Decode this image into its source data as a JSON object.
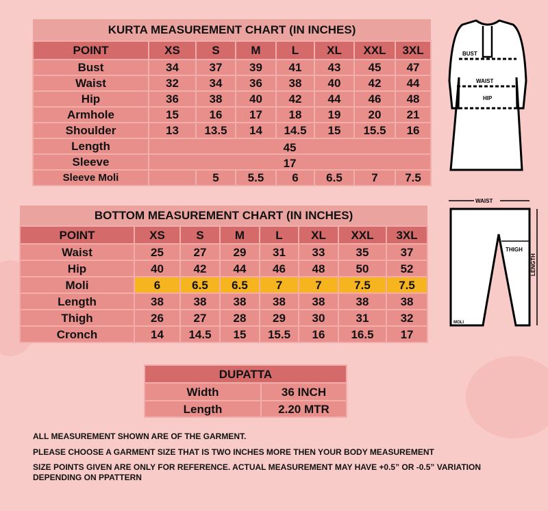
{
  "kurta": {
    "title": "KURTA MEASUREMENT CHART (IN INCHES)",
    "headers": [
      "POINT",
      "XS",
      "S",
      "M",
      "L",
      "XL",
      "XXL",
      "3XL"
    ],
    "rows": [
      {
        "point": "Bust",
        "values": [
          "34",
          "37",
          "39",
          "41",
          "43",
          "45",
          "47"
        ]
      },
      {
        "point": "Waist",
        "values": [
          "32",
          "34",
          "36",
          "38",
          "40",
          "42",
          "44"
        ]
      },
      {
        "point": "Hip",
        "values": [
          "36",
          "38",
          "40",
          "42",
          "44",
          "46",
          "48"
        ]
      },
      {
        "point": "Armhole",
        "values": [
          "15",
          "16",
          "17",
          "18",
          "19",
          "20",
          "21"
        ]
      },
      {
        "point": "Shoulder",
        "values": [
          "13",
          "13.5",
          "14",
          "14.5",
          "15",
          "15.5",
          "16"
        ]
      }
    ],
    "length": {
      "point": "Length",
      "value": "45"
    },
    "sleeve": {
      "point": "Sleeve",
      "value": "17"
    },
    "sleeve_moli": {
      "point": "Sleeve Moli",
      "values": [
        "",
        "5",
        "5.5",
        "6",
        "6.5",
        "7",
        "7.5"
      ]
    }
  },
  "bottom": {
    "title": "BOTTOM MEASUREMENT CHART (IN INCHES)",
    "headers": [
      "POINT",
      "XS",
      "S",
      "M",
      "L",
      "XL",
      "XXL",
      "3XL"
    ],
    "rows": [
      {
        "point": "Waist",
        "values": [
          "25",
          "27",
          "29",
          "31",
          "33",
          "35",
          "37"
        ]
      },
      {
        "point": "Hip",
        "values": [
          "40",
          "42",
          "44",
          "46",
          "48",
          "50",
          "52"
        ]
      },
      {
        "point": "Moli",
        "values": [
          "6",
          "6.5",
          "6.5",
          "7",
          "7",
          "7.5",
          "7.5"
        ],
        "highlight": "#f6b51e"
      },
      {
        "point": "Length",
        "values": [
          "38",
          "38",
          "38",
          "38",
          "38",
          "38",
          "38"
        ]
      },
      {
        "point": "Thigh",
        "values": [
          "26",
          "27",
          "28",
          "29",
          "30",
          "31",
          "32"
        ]
      },
      {
        "point": "Cronch",
        "values": [
          "14",
          "14.5",
          "15",
          "15.5",
          "16",
          "16.5",
          "17"
        ]
      }
    ]
  },
  "dupatta": {
    "title": "DUPATTA",
    "rows": [
      {
        "label": "Width",
        "value": "36 INCH"
      },
      {
        "label": "Length",
        "value": "2.20 MTR"
      }
    ]
  },
  "kurta_figure": {
    "labels": [
      "BUST",
      "WAIST",
      "HIP"
    ]
  },
  "bottom_figure": {
    "labels": [
      "WAIST",
      "THIGH",
      "LENGTH",
      "MOLI"
    ]
  },
  "notes": [
    "ALL MEASUREMENT SHOWN ARE OF THE  GARMENT.",
    "PLEASE CHOOSE A GARMENT SIZE THAT IS TWO INCHES MORE THEN YOUR BODY MEASUREMENT",
    "SIZE POINTS GIVEN ARE ONLY FOR REFERENCE. ACTUAL MEASUREMENT MAY HAVE  +0.5” OR -0.5” VARIATION",
    "DEPENDING ON PPATTERN"
  ],
  "colors": {
    "background": "#f8cbc8",
    "cell": "#e88f8c",
    "header": "#d56a6b",
    "highlight": "#f6b51e"
  }
}
